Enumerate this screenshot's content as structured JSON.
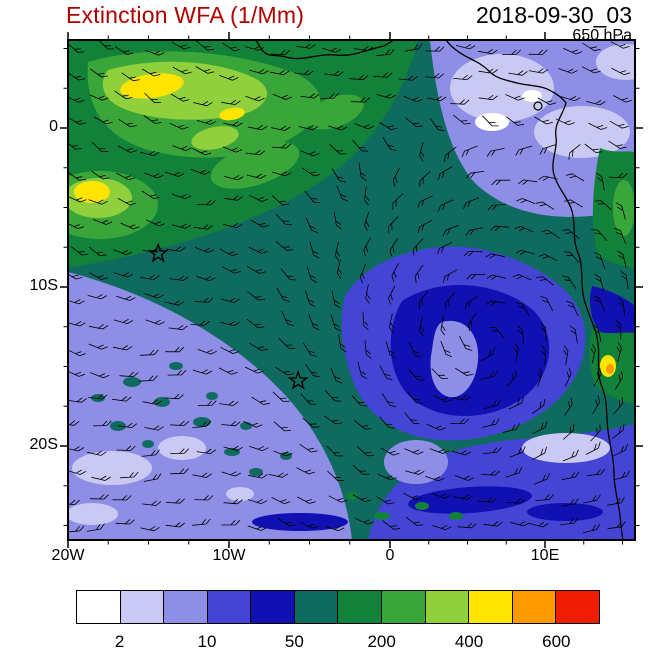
{
  "header": {
    "title": "Extinction WFA (1/Mm)",
    "datetime": "2018-09-30_03",
    "level": "650 hPa",
    "title_color": "#B00000",
    "text_color": "#000000"
  },
  "axes": {
    "x_tick_labels": [
      "20W",
      "10W",
      "0",
      "10E"
    ],
    "y_tick_labels": [
      "0",
      "10S",
      "20S"
    ]
  },
  "colorbar": {
    "labels": [
      "2",
      "10",
      "50",
      "200",
      "400",
      "600"
    ],
    "levels": [
      2,
      5,
      10,
      25,
      50,
      100,
      200,
      300,
      400,
      500,
      600
    ],
    "colors": [
      "#FFFFFF",
      "#C9C9F3",
      "#8E8EE6",
      "#4545D5",
      "#1111B3",
      "#0F6B5F",
      "#12813A",
      "#3AA63A",
      "#8FD03C",
      "#FFE400",
      "#FF9B00",
      "#F01E00"
    ]
  },
  "chart_data": {
    "type": "heatmap",
    "title": "Extinction WFA (1/Mm)",
    "datetime": "2018-09-30_03",
    "pressure_level": "650 hPa",
    "units": "1/Mm",
    "region": "South Atlantic / West and Central Africa",
    "lon_range": [
      -20,
      15.5
    ],
    "lat_range": [
      -26,
      5.5
    ],
    "x_tick_labels": [
      "20W",
      "10W",
      "0",
      "10E"
    ],
    "y_tick_labels": [
      "0",
      "10S",
      "20S"
    ],
    "contour_levels": [
      2,
      5,
      10,
      25,
      50,
      100,
      200,
      300,
      400,
      500,
      600
    ],
    "palette": [
      "#FFFFFF",
      "#C9C9F3",
      "#8E8EE6",
      "#4545D5",
      "#1111B3",
      "#0F6B5F",
      "#12813A",
      "#3AA63A",
      "#8FD03C",
      "#FFE400",
      "#FF9B00",
      "#F01E00"
    ],
    "legend_position": "bottom",
    "grid": false,
    "overlays": [
      "wind barbs",
      "coastline"
    ],
    "markers": [
      {
        "symbol": "star",
        "lon": -14.4,
        "lat": -7.9
      },
      {
        "symbol": "star",
        "lon": -5.7,
        "lat": -15.9
      }
    ],
    "notable_features": [
      "Aerosol extinction maximum 300-600 1/Mm (yellow/bright green) in the northwest between 20W-8W and 3N-6S",
      "Band of 50-200 1/Mm (dark green) sweeping east across the basin and wrapping around the South Atlantic gyre",
      "Gyre interior 10-25 1/Mm (blue) with 25-50 1/Mm core (dark blue) near 3W-8E, 11S-17S",
      "Low values 2-10 1/Mm (lavender/periwinkle) near the Gulf of Guinea coast in the northeast and over the southwest below 10S",
      "Small coastal maximum ~400-600 1/Mm near the Angola coast around 13E, 15S"
    ]
  }
}
